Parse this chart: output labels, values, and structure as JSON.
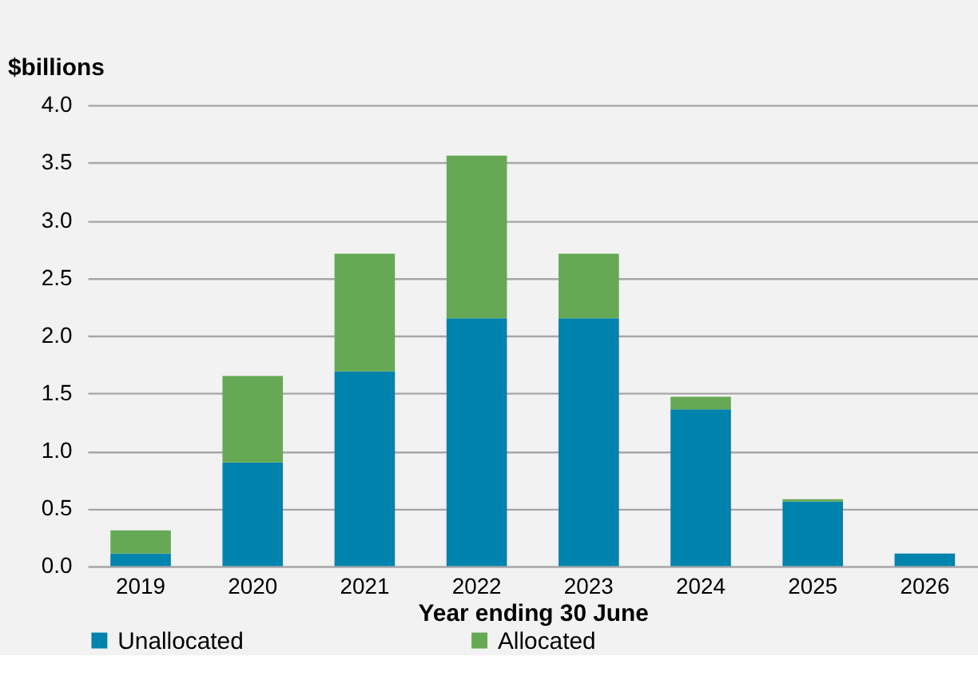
{
  "chart_data": {
    "type": "bar",
    "stacked": true,
    "ylabel": "$billions",
    "xlabel": "Year ending 30 June",
    "categories": [
      "2019",
      "2020",
      "2021",
      "2022",
      "2023",
      "2024",
      "2025",
      "2026"
    ],
    "series": [
      {
        "name": "Unallocated",
        "color": "#0083ad",
        "values": [
          0.11,
          0.9,
          1.69,
          2.15,
          2.15,
          1.36,
          0.56,
          0.11
        ]
      },
      {
        "name": "Allocated",
        "color": "#66a955",
        "values": [
          0.2,
          0.75,
          1.02,
          1.41,
          0.56,
          0.11,
          0.02,
          0
        ]
      }
    ],
    "ylim": [
      0,
      4
    ],
    "yticks": [
      {
        "value": 0,
        "label": "0.0"
      },
      {
        "value": 0.5,
        "label": "0.5"
      },
      {
        "value": 1,
        "label": "1.0"
      },
      {
        "value": 1.5,
        "label": "1.5"
      },
      {
        "value": 2,
        "label": "2.0"
      },
      {
        "value": 2.5,
        "label": "2.5"
      },
      {
        "value": 3,
        "label": "3.0"
      },
      {
        "value": 3.5,
        "label": "3.5"
      },
      {
        "value": 4,
        "label": "4.0"
      }
    ],
    "grid": "y",
    "legend": "bottom"
  }
}
